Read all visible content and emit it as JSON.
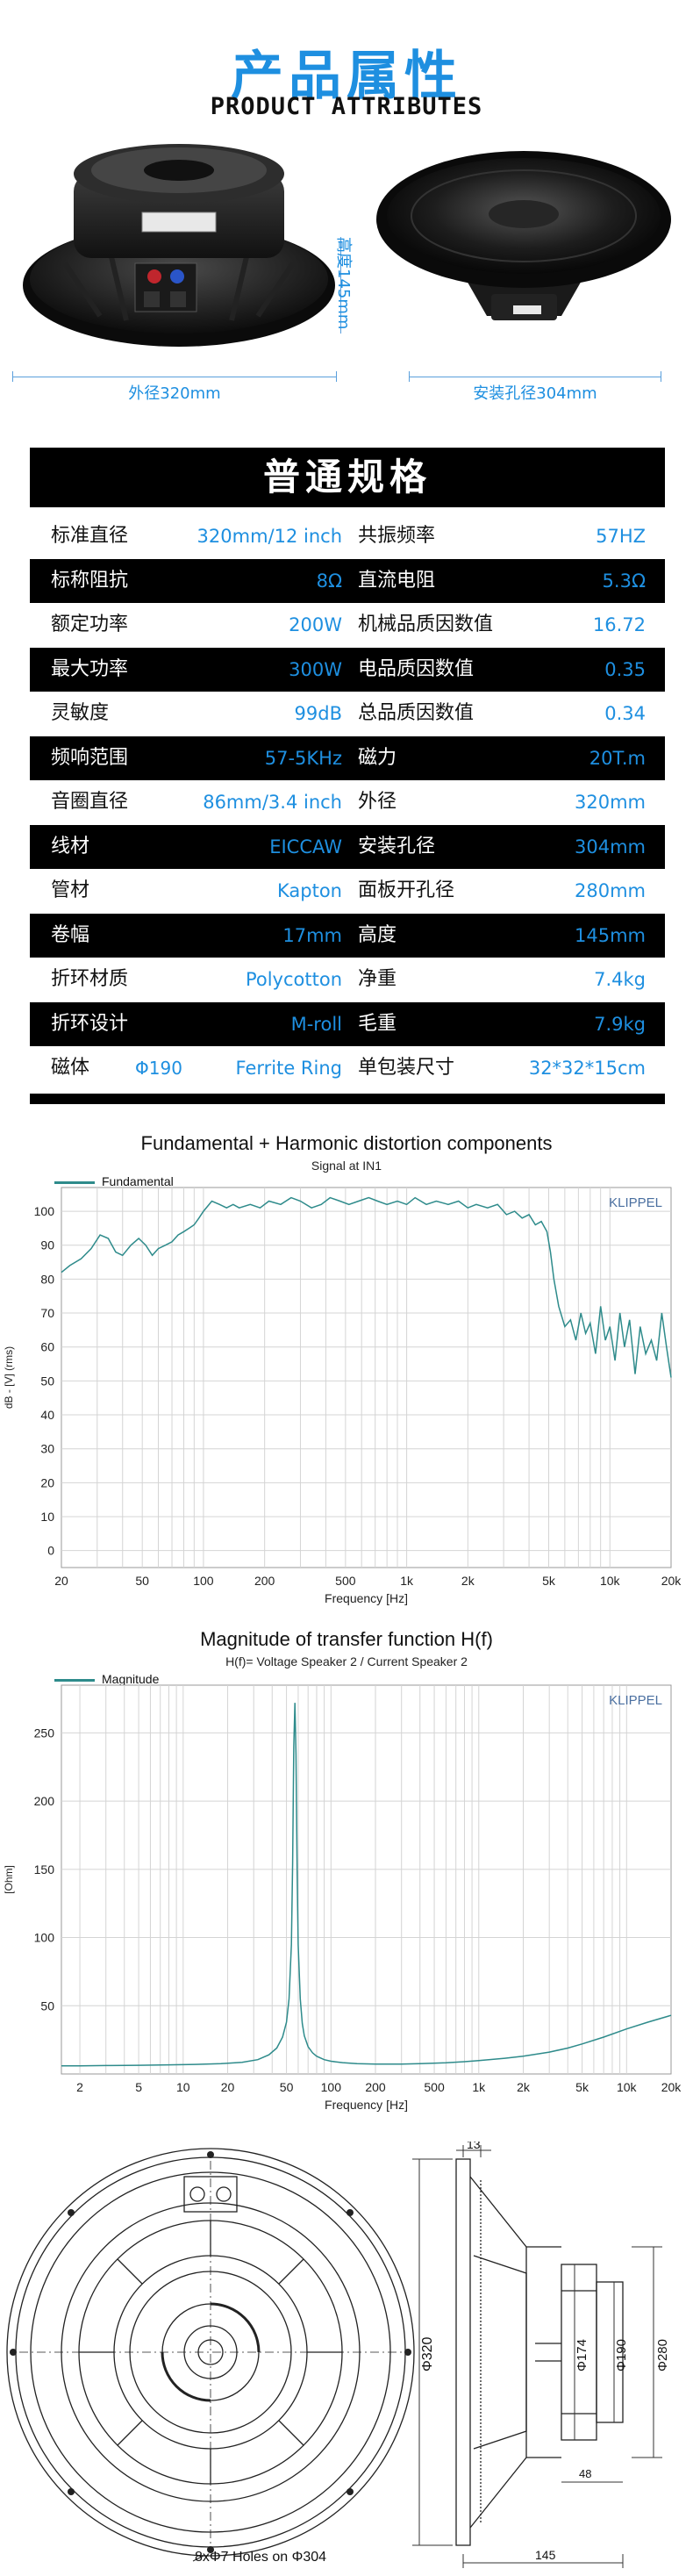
{
  "header": {
    "title_cn": "产品属性",
    "title_en": "PRODUCT ATTRIBUTES"
  },
  "photos": {
    "outer_diameter_label": "外径320mm",
    "mount_hole_label": "安装孔径304mm",
    "height_label": "高度145mm"
  },
  "specs": {
    "title": "普通规格",
    "rows": [
      {
        "label1": "标准直径",
        "value1": "320mm/12 inch",
        "label2": "共振频率",
        "value2": "57HZ",
        "dark": false
      },
      {
        "label1": "标称阻抗",
        "value1": "8Ω",
        "label2": "直流电阻",
        "value2": "5.3Ω",
        "dark": true
      },
      {
        "label1": "额定功率",
        "value1": "200W",
        "label2": "机械品质因数值",
        "value2": "16.72",
        "dark": false
      },
      {
        "label1": "最大功率",
        "value1": "300W",
        "label2": "电品质因数值",
        "value2": "0.35",
        "dark": true
      },
      {
        "label1": "灵敏度",
        "value1": "99dB",
        "label2": "总品质因数值",
        "value2": "0.34",
        "dark": false
      },
      {
        "label1": "频响范围",
        "value1": "57-5KHz",
        "label2": "磁力",
        "value2": "20T.m",
        "dark": true
      },
      {
        "label1": "音圈直径",
        "value1": "86mm/3.4 inch",
        "label2": "外径",
        "value2": "320mm",
        "dark": false
      },
      {
        "label1": "线材",
        "value1": "EICCAW",
        "label2": "安装孔径",
        "value2": "304mm",
        "dark": true
      },
      {
        "label1": "管材",
        "value1": "Kapton",
        "label2": "面板开孔径",
        "value2": "280mm",
        "dark": false
      },
      {
        "label1": "卷幅",
        "value1": "17mm",
        "label2": "高度",
        "value2": "145mm",
        "dark": true
      },
      {
        "label1": "折环材质",
        "value1": "Polycotton",
        "label2": "净重",
        "value2": "7.4kg",
        "dark": false
      },
      {
        "label1": "折环设计",
        "value1": "M-roll",
        "label2": "毛重",
        "value2": "7.9kg",
        "dark": true
      },
      {
        "label1": "磁体",
        "sub1": "Φ190",
        "value1": "Ferrite Ring",
        "label2": "单包装尺寸",
        "value2": "32*32*15cm",
        "dark": false
      }
    ]
  },
  "chart_data": [
    {
      "type": "line",
      "title": "Fundamental + Harmonic distortion components",
      "subtitle": "Signal at IN1",
      "watermark": "KLIPPEL",
      "xlabel": "Frequency [Hz]",
      "ylabel": "dB - [V] (rms)",
      "xscale": "log",
      "xlim": [
        20,
        20000
      ],
      "ylim": [
        -5,
        107
      ],
      "x_ticks": [
        20,
        50,
        100,
        200,
        500,
        1000,
        2000,
        5000,
        10000,
        20000
      ],
      "x_tick_labels": [
        "20",
        "50",
        "100",
        "200",
        "500",
        "1k",
        "2k",
        "5k",
        "10k",
        "20k"
      ],
      "y_ticks": [
        0,
        10,
        20,
        30,
        40,
        50,
        60,
        70,
        80,
        90,
        100
      ],
      "grid": true,
      "legend_position": "top-left",
      "color": "#2e8b8b",
      "series": [
        {
          "name": "Fundamental",
          "x": [
            20,
            22,
            25,
            28,
            31,
            34,
            37,
            40,
            44,
            48,
            52,
            56,
            60,
            65,
            70,
            75,
            80,
            85,
            90,
            95,
            100,
            110,
            120,
            130,
            140,
            150,
            170,
            190,
            210,
            240,
            270,
            300,
            340,
            380,
            420,
            470,
            520,
            580,
            650,
            720,
            800,
            900,
            1000,
            1100,
            1250,
            1400,
            1600,
            1800,
            2000,
            2200,
            2500,
            2800,
            3100,
            3400,
            3700,
            4000,
            4300,
            4600,
            4900,
            5100,
            5300,
            5600,
            6000,
            6400,
            6800,
            7200,
            7600,
            8000,
            8500,
            9000,
            9500,
            10000,
            10600,
            11200,
            11800,
            12500,
            13300,
            14100,
            15000,
            16000,
            17000,
            18000,
            19000,
            20000
          ],
          "y": [
            82,
            84,
            86,
            89,
            93,
            92,
            88,
            87,
            90,
            92,
            90,
            87,
            89,
            90,
            91,
            93,
            94,
            95,
            96,
            98,
            100,
            103,
            102,
            101,
            102,
            101,
            102,
            101,
            103,
            102,
            104,
            103,
            101,
            102,
            104,
            103,
            102,
            103,
            104,
            103,
            102,
            103,
            102,
            104,
            102,
            103,
            102,
            103,
            101,
            102,
            101,
            102,
            99,
            100,
            98,
            99,
            96,
            97,
            94,
            88,
            80,
            72,
            66,
            68,
            62,
            70,
            64,
            67,
            58,
            72,
            62,
            66,
            56,
            70,
            60,
            68,
            52,
            66,
            58,
            62,
            56,
            70,
            60,
            51
          ]
        }
      ]
    },
    {
      "type": "line",
      "title": "Magnitude of transfer function H(f)",
      "subtitle": "H(f)= Voltage Speaker 2 / Current Speaker 2",
      "watermark": "KLIPPEL",
      "xlabel": "Frequency [Hz]",
      "ylabel": "[Ohm]",
      "xscale": "log",
      "xlim": [
        1.5,
        20000
      ],
      "ylim": [
        0,
        285
      ],
      "x_ticks": [
        2,
        5,
        10,
        20,
        50,
        100,
        200,
        500,
        1000,
        2000,
        5000,
        10000,
        20000
      ],
      "x_tick_labels": [
        "2",
        "5",
        "10",
        "20",
        "50",
        "100",
        "200",
        "500",
        "1k",
        "2k",
        "5k",
        "10k",
        "20k"
      ],
      "y_ticks": [
        50,
        100,
        150,
        200,
        250
      ],
      "grid": true,
      "legend_position": "top-left",
      "color": "#2e8b8b",
      "series": [
        {
          "name": "Magnitude",
          "x": [
            1.5,
            2,
            3,
            5,
            8,
            12,
            18,
            25,
            32,
            38,
            43,
            47,
            50,
            52,
            54,
            55,
            56,
            57,
            58,
            59,
            60,
            62,
            64,
            66,
            70,
            75,
            80,
            90,
            100,
            120,
            150,
            200,
            300,
            400,
            600,
            800,
            1000,
            1500,
            2000,
            3000,
            4000,
            5000,
            7000,
            10000,
            14000,
            20000
          ],
          "y": [
            6,
            6,
            6.2,
            6.4,
            6.7,
            7,
            7.6,
            8.5,
            10.5,
            14,
            19,
            27,
            38,
            55,
            95,
            155,
            240,
            272,
            235,
            150,
            95,
            55,
            37,
            28,
            20,
            15.5,
            13,
            10.5,
            9.3,
            8.3,
            7.6,
            7.2,
            7.2,
            7.5,
            8.2,
            9,
            9.8,
            11.5,
            13,
            16,
            19,
            22,
            27,
            33,
            38,
            43
          ]
        }
      ]
    }
  ],
  "drawing": {
    "holes_label": "8xΦ7 Holes on Φ304",
    "dim_top": "13",
    "dim_320": "Φ320",
    "dim_174": "Φ174",
    "dim_190": "Φ190",
    "dim_280": "Φ280",
    "dim_48": "48",
    "dim_145": "145"
  }
}
